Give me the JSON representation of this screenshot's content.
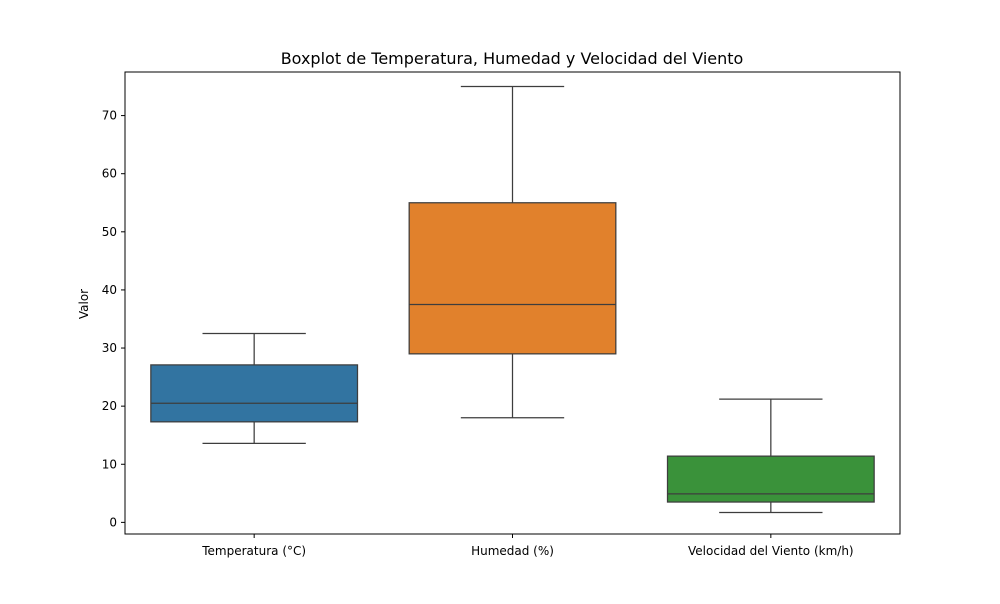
{
  "chart_data": {
    "type": "box",
    "title": "Boxplot de Temperatura, Humedad y Velocidad del Viento",
    "xlabel": "",
    "ylabel": "Valor",
    "ylim": [
      -2,
      77.5
    ],
    "yticks": [
      0,
      10,
      20,
      30,
      40,
      50,
      60,
      70
    ],
    "grid": false,
    "categories": [
      "Temperatura (°C)",
      "Humedad (%)",
      "Velocidad del Viento (km/h)"
    ],
    "boxes": [
      {
        "category": "Temperatura (°C)",
        "whisker_low": 13.6,
        "q1": 17.3,
        "median": 20.5,
        "q3": 27.1,
        "whisker_high": 32.5,
        "color": "#3274a1"
      },
      {
        "category": "Humedad (%)",
        "whisker_low": 18.0,
        "q1": 29.0,
        "median": 37.5,
        "q3": 55.0,
        "whisker_high": 75.0,
        "color": "#e1812c"
      },
      {
        "category": "Velocidad del Viento (km/h)",
        "whisker_low": 1.7,
        "q1": 3.5,
        "median": 4.9,
        "q3": 11.4,
        "whisker_high": 21.2,
        "color": "#3a923a"
      }
    ]
  }
}
